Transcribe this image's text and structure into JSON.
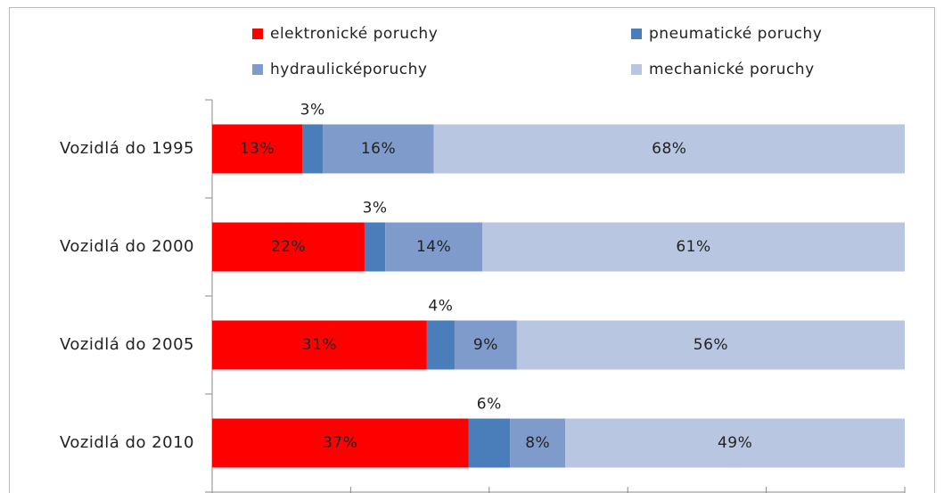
{
  "chart_data": {
    "type": "stacked-barh",
    "categories": [
      "Vozidlá do 1995",
      "Vozidlá do 2000",
      "Vozidlá do 2005",
      "Vozidlá do 2010"
    ],
    "series": [
      {
        "name": "elektronické poruchy",
        "color": "#ff0000",
        "values": [
          13,
          22,
          31,
          37
        ],
        "value_labels": [
          "13%",
          "22%",
          "31%",
          "37%"
        ]
      },
      {
        "name": "pneumatické poruchy",
        "color": "#4a7ebb",
        "values": [
          3,
          3,
          4,
          6
        ],
        "value_labels": [
          "3%",
          "3%",
          "4%",
          "6%"
        ]
      },
      {
        "name": "hydraulicképoruchy",
        "color": "#7f9bcc",
        "values": [
          16,
          14,
          9,
          8
        ],
        "value_labels": [
          "16%",
          "14%",
          "9%",
          "8%"
        ]
      },
      {
        "name": "mechanické poruchy",
        "color": "#b8c6e2",
        "values": [
          68,
          61,
          56,
          49
        ],
        "value_labels": [
          "68%",
          "61%",
          "56%",
          "49%"
        ]
      }
    ],
    "xlim": [
      0,
      100
    ],
    "xticks": [
      0,
      20,
      40,
      60,
      80,
      100
    ]
  }
}
